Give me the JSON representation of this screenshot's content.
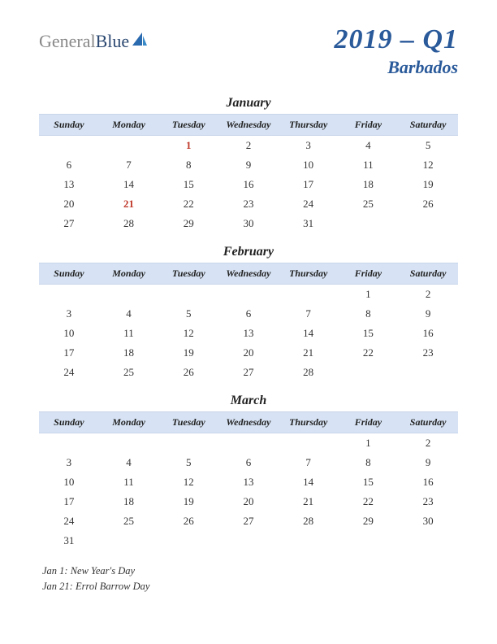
{
  "logo": {
    "text1": "General",
    "text2": "Blue"
  },
  "title": {
    "main": "2019 – Q1",
    "sub": "Barbados"
  },
  "colors": {
    "header_bg": "#d7e3f4",
    "title_color": "#2a5a9a",
    "holiday_color": "#c0392b",
    "text_color": "#333333"
  },
  "day_headers": [
    "Sunday",
    "Monday",
    "Tuesday",
    "Wednesday",
    "Thursday",
    "Friday",
    "Saturday"
  ],
  "months": [
    {
      "name": "January",
      "weeks": [
        [
          "",
          "",
          {
            "d": "1",
            "h": true
          },
          "2",
          "3",
          "4",
          "5"
        ],
        [
          "6",
          "7",
          "8",
          "9",
          "10",
          "11",
          "12"
        ],
        [
          "13",
          "14",
          "15",
          "16",
          "17",
          "18",
          "19"
        ],
        [
          "20",
          {
            "d": "21",
            "h": true
          },
          "22",
          "23",
          "24",
          "25",
          "26"
        ],
        [
          "27",
          "28",
          "29",
          "30",
          "31",
          "",
          ""
        ]
      ]
    },
    {
      "name": "February",
      "weeks": [
        [
          "",
          "",
          "",
          "",
          "",
          "1",
          "2"
        ],
        [
          "3",
          "4",
          "5",
          "6",
          "7",
          "8",
          "9"
        ],
        [
          "10",
          "11",
          "12",
          "13",
          "14",
          "15",
          "16"
        ],
        [
          "17",
          "18",
          "19",
          "20",
          "21",
          "22",
          "23"
        ],
        [
          "24",
          "25",
          "26",
          "27",
          "28",
          "",
          ""
        ]
      ]
    },
    {
      "name": "March",
      "weeks": [
        [
          "",
          "",
          "",
          "",
          "",
          "1",
          "2"
        ],
        [
          "3",
          "4",
          "5",
          "6",
          "7",
          "8",
          "9"
        ],
        [
          "10",
          "11",
          "12",
          "13",
          "14",
          "15",
          "16"
        ],
        [
          "17",
          "18",
          "19",
          "20",
          "21",
          "22",
          "23"
        ],
        [
          "24",
          "25",
          "26",
          "27",
          "28",
          "29",
          "30"
        ],
        [
          "31",
          "",
          "",
          "",
          "",
          "",
          ""
        ]
      ]
    }
  ],
  "notes": [
    "Jan 1: New Year's Day",
    "Jan 21: Errol Barrow Day"
  ]
}
